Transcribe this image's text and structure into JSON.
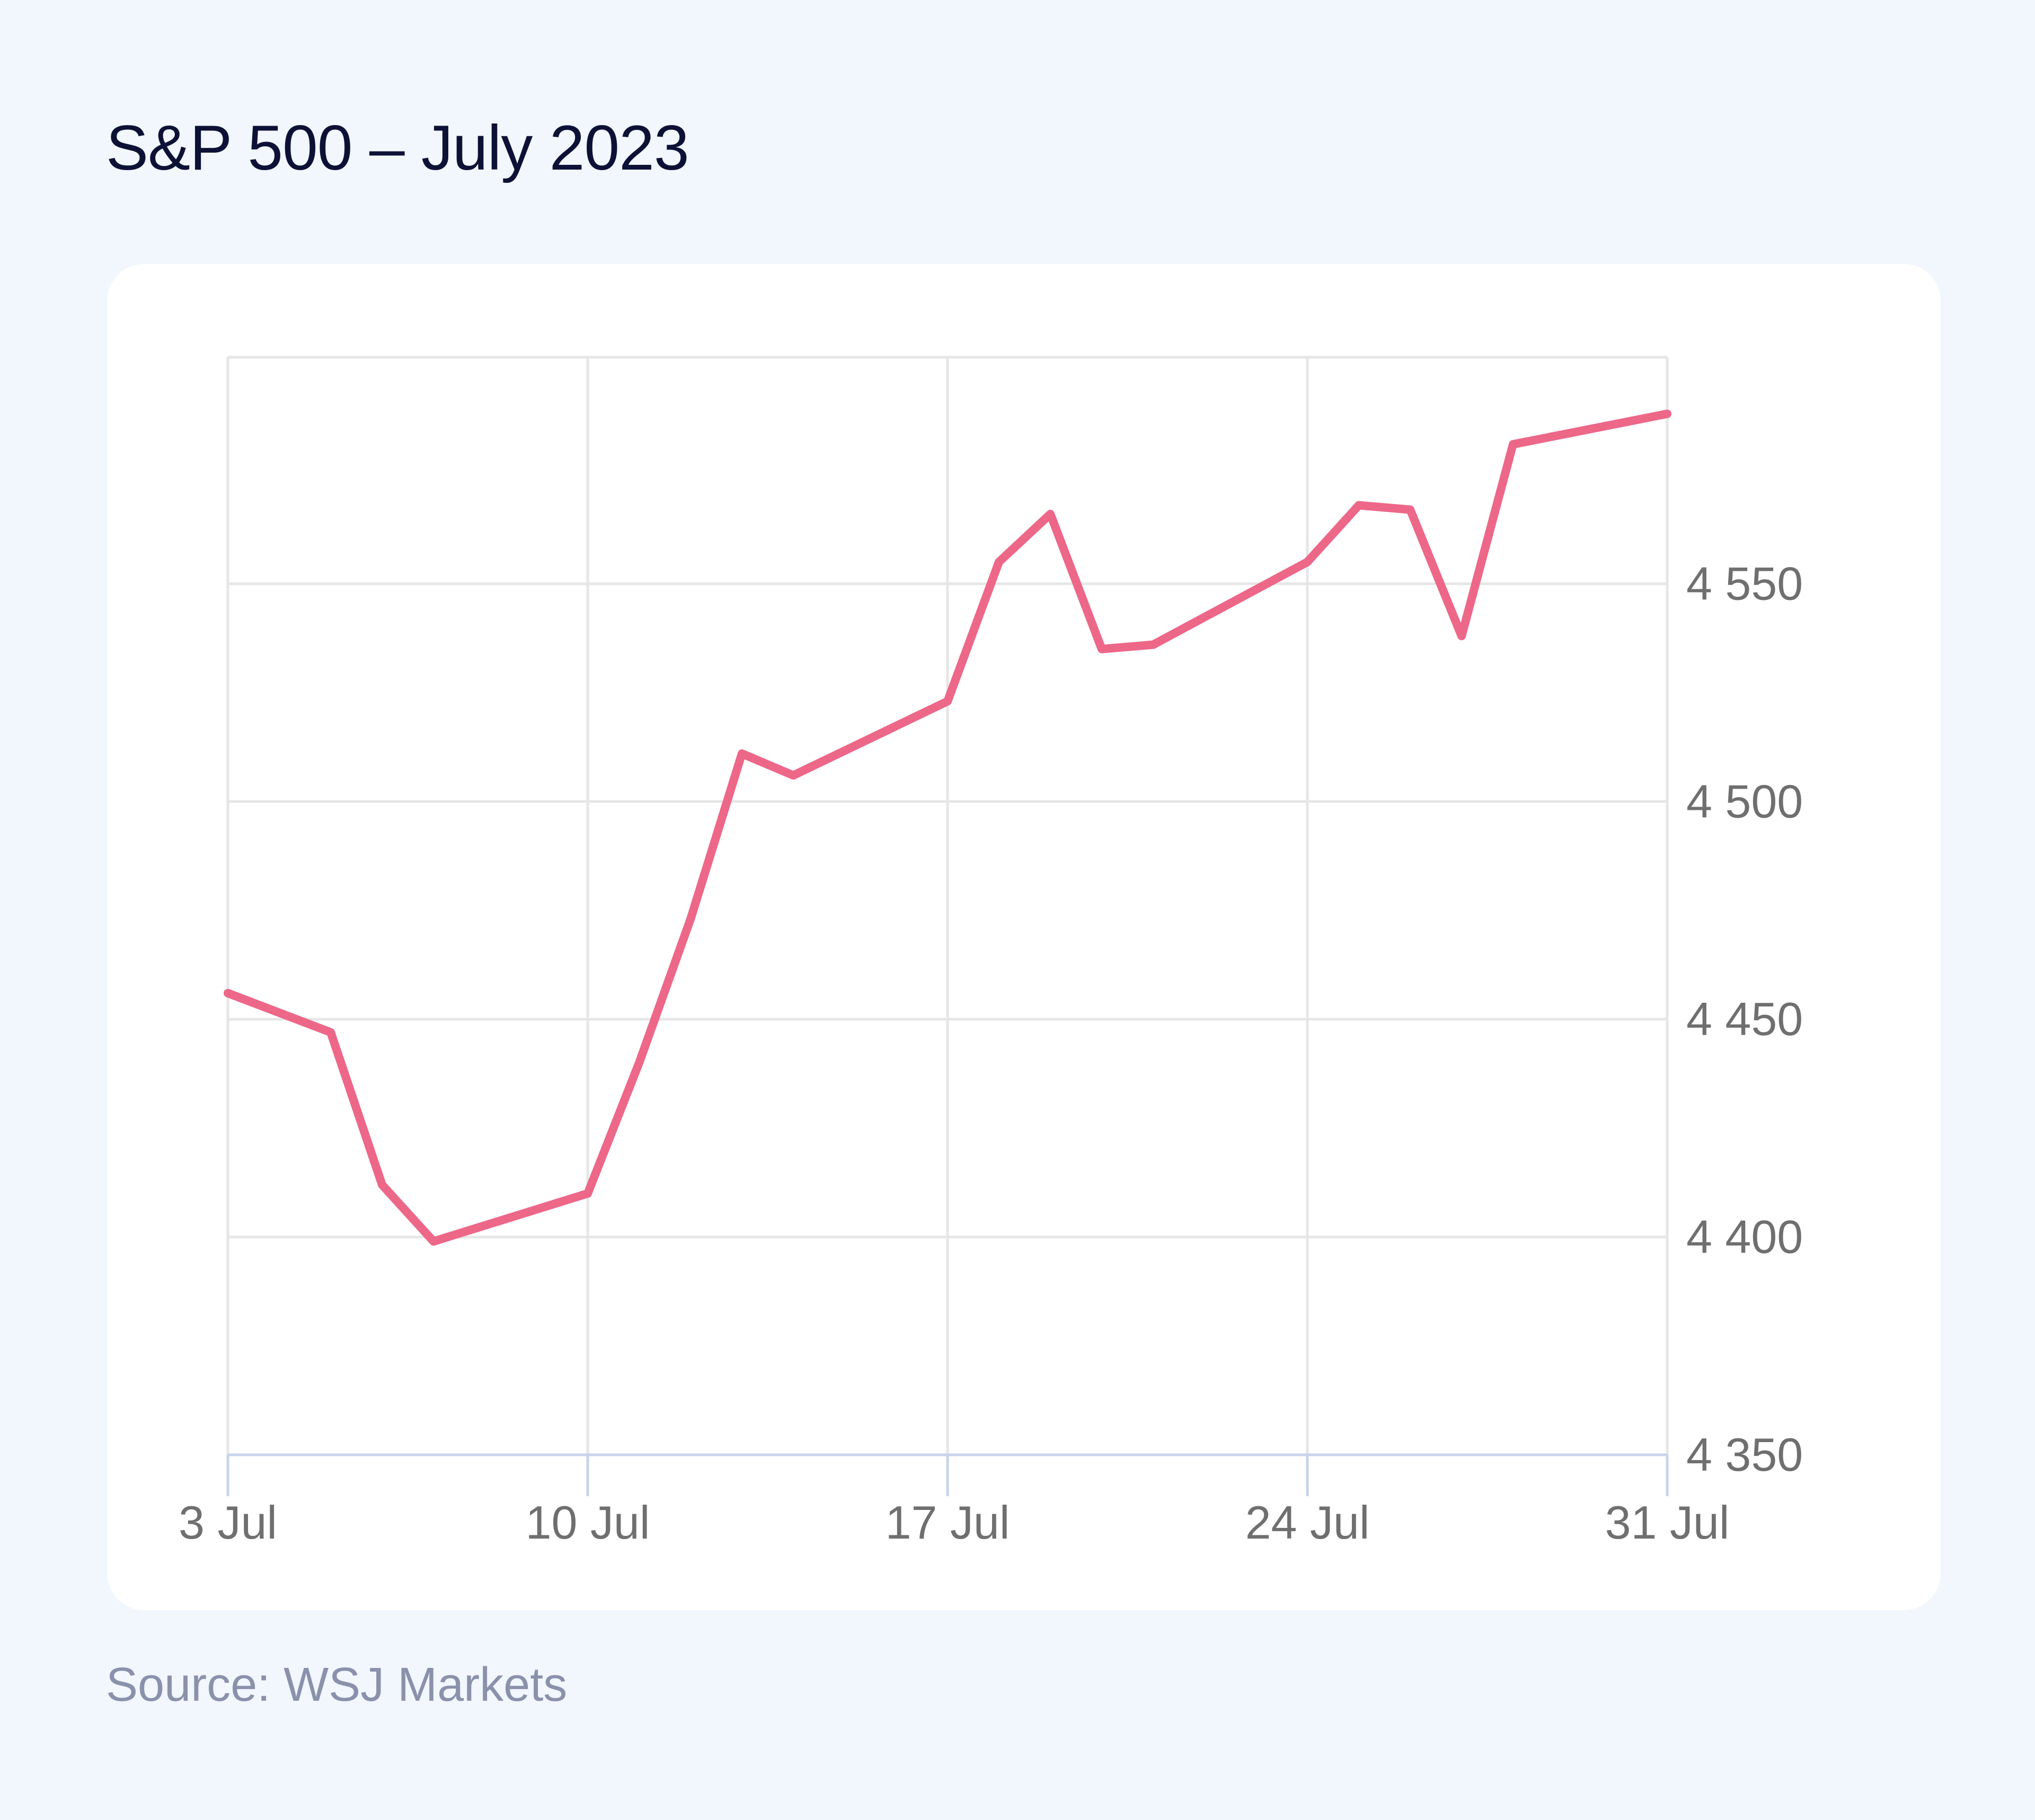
{
  "title": "S&P 500 – July 2023",
  "source": "Source: WSJ Markets",
  "colors": {
    "line": "#ed6789",
    "grid": "#e6e6e6",
    "x_axis": "#c7d4ea",
    "background": "#f2f6fd",
    "card": "#ffffff",
    "title": "#0c1135",
    "tick_text": "#6f6f6f",
    "source_text": "#8a91ab"
  },
  "chart_data": {
    "type": "line",
    "title": "S&P 500 – July 2023",
    "xlabel": "",
    "ylabel": "",
    "x_tick_labels": [
      "3 Jul",
      "10 Jul",
      "17 Jul",
      "24 Jul",
      "31 Jul"
    ],
    "y_tick_labels": [
      "4 350",
      "4 400",
      "4 450",
      "4 500",
      "4 550"
    ],
    "y_ticks": [
      4350,
      4400,
      4450,
      4500,
      4550
    ],
    "ylim": [
      4350,
      4602
    ],
    "xlim": [
      "2023-07-03",
      "2023-07-31"
    ],
    "y_axis_position": "right",
    "grid": true,
    "legend": "none",
    "series": [
      {
        "x": [
          "2023-07-03",
          "2023-07-05",
          "2023-07-06",
          "2023-07-07",
          "2023-07-10",
          "2023-07-11",
          "2023-07-12",
          "2023-07-13",
          "2023-07-14",
          "2023-07-17",
          "2023-07-18",
          "2023-07-19",
          "2023-07-20",
          "2023-07-21",
          "2023-07-24",
          "2023-07-25",
          "2023-07-26",
          "2023-07-27",
          "2023-07-28",
          "2023-07-31"
        ],
        "values": [
          4456,
          4447,
          4412,
          4399,
          4410,
          4440,
          4473,
          4511,
          4506,
          4523,
          4555,
          4566,
          4535,
          4536,
          4555,
          4568,
          4567,
          4538,
          4582,
          4589
        ]
      }
    ]
  }
}
